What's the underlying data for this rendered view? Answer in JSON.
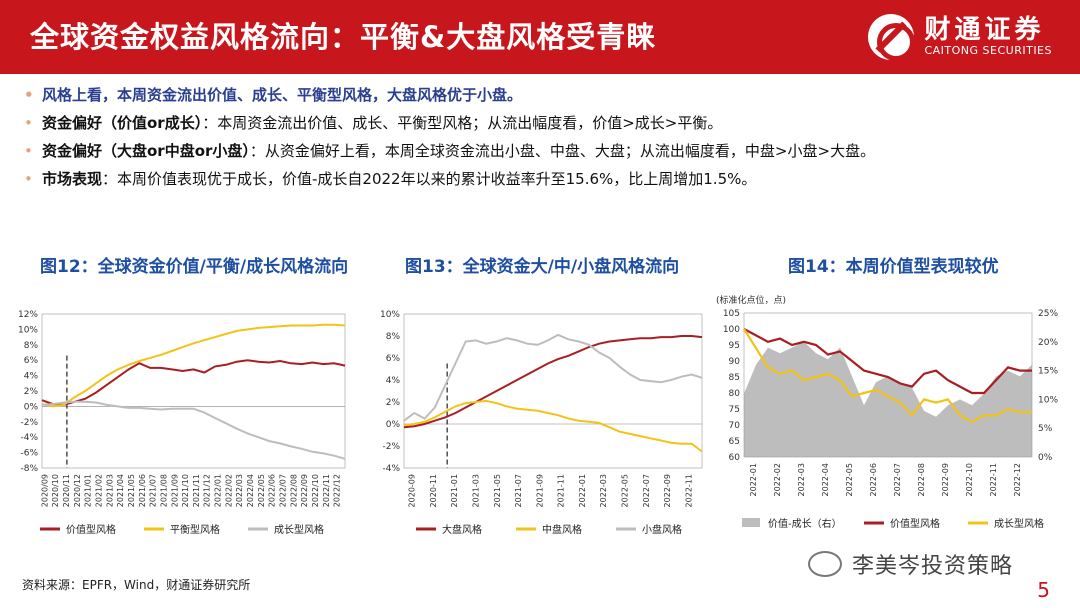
{
  "header": {
    "title": "全球资金权益风格流向：平衡&大盘风格受青睐",
    "logo_cn": "财通证券",
    "logo_en": "CAITONG SECURITIES"
  },
  "bullets": [
    {
      "bold": "风格上看，本周资金流出价值、成长、平衡型风格，大盘风格优于小盘。",
      "text": ""
    },
    {
      "bold": "资金偏好（价值or成长）",
      "text": "：本周资金流出价值、成长、平衡型风格；从流出幅度看，价值>成长>平衡。"
    },
    {
      "bold": "资金偏好（大盘or中盘or小盘）",
      "text": "：从资金偏好上看，本周全球资金流出小盘、中盘、大盘；从流出幅度看，中盘>小盘>大盘。"
    },
    {
      "bold": "市场表现",
      "text": "：本周价值表现优于成长，价值-成长自2022年以来的累计收益率升至15.6%，比上周增加1.5%。"
    }
  ],
  "colors": {
    "red": "#a81e23",
    "yellow": "#f2c318",
    "gray": "#bdbdbd",
    "brand": "#c8161d",
    "title_blue": "#1f4fa0"
  },
  "footer": {
    "source": "资料来源：EPFR，Wind，财通证券研究所",
    "watermark": "李美岑投资策略",
    "page": "5"
  },
  "chart_data": [
    {
      "type": "line",
      "title": "图12：全球资金价值/平衡/成长风格流向",
      "x_ticks": [
        "2020/09",
        "2020/10",
        "2020/11",
        "2020/12",
        "2021/01",
        "2021/02",
        "2021/03",
        "2021/04",
        "2021/05",
        "2021/06",
        "2021/07",
        "2021/08",
        "2021/09",
        "2021/10",
        "2021/11",
        "2021/12",
        "2022/01",
        "2022/02",
        "2022/03",
        "2022/04",
        "2022/05",
        "2022/06",
        "2022/07",
        "2022/08",
        "2022/09",
        "2022/10",
        "2022/11",
        "2022/12"
      ],
      "y_ticks": [
        "12%",
        "10%",
        "8%",
        "6%",
        "4%",
        "2%",
        "0%",
        "-2%",
        "-4%",
        "-6%",
        "-8%"
      ],
      "ylim": [
        -8,
        12
      ],
      "marker_x": 2.3,
      "x_range": [
        0,
        28
      ],
      "series": [
        {
          "name": "价值型风格",
          "color": "#a81e23",
          "x": [
            0,
            1,
            2,
            3,
            4,
            5,
            6,
            7,
            8,
            9,
            10,
            11,
            12,
            13,
            14,
            15,
            16,
            17,
            18,
            19,
            20,
            21,
            22,
            23,
            24,
            25,
            26,
            27,
            28
          ],
          "values": [
            0.8,
            0.3,
            0.2,
            0.6,
            1.0,
            1.8,
            2.8,
            3.8,
            4.8,
            5.6,
            5.0,
            5.0,
            4.8,
            4.6,
            4.8,
            4.4,
            5.2,
            5.4,
            5.8,
            6.0,
            5.8,
            5.7,
            5.9,
            5.6,
            5.5,
            5.7,
            5.5,
            5.6,
            5.3
          ]
        },
        {
          "name": "平衡型风格",
          "color": "#f2c318",
          "x": [
            0,
            1,
            2,
            3,
            4,
            5,
            6,
            7,
            8,
            9,
            10,
            11,
            12,
            13,
            14,
            15,
            16,
            17,
            18,
            19,
            20,
            21,
            22,
            23,
            24,
            25,
            26,
            27,
            28
          ],
          "values": [
            0.3,
            0.0,
            0.2,
            1.2,
            2.0,
            3.0,
            4.0,
            4.8,
            5.4,
            5.9,
            6.3,
            6.7,
            7.2,
            7.7,
            8.2,
            8.6,
            9.0,
            9.4,
            9.8,
            10.0,
            10.2,
            10.3,
            10.4,
            10.5,
            10.5,
            10.5,
            10.6,
            10.6,
            10.5
          ]
        },
        {
          "name": "成长型风格",
          "color": "#bdbdbd",
          "x": [
            0,
            1,
            2,
            3,
            4,
            5,
            6,
            7,
            8,
            9,
            10,
            11,
            12,
            13,
            14,
            15,
            16,
            17,
            18,
            19,
            20,
            21,
            22,
            23,
            24,
            25,
            26,
            27,
            28
          ],
          "values": [
            0.2,
            0.3,
            0.5,
            0.6,
            0.6,
            0.5,
            0.2,
            0.0,
            -0.2,
            -0.2,
            -0.3,
            -0.4,
            -0.3,
            -0.3,
            -0.3,
            -0.8,
            -1.5,
            -2.2,
            -2.9,
            -3.5,
            -4.0,
            -4.5,
            -4.8,
            -5.2,
            -5.5,
            -5.9,
            -6.1,
            -6.4,
            -6.8
          ]
        }
      ]
    },
    {
      "type": "line",
      "title": "图13：全球资金大/中/小盘风格流向",
      "x_ticks": [
        "2020-09",
        "2020-11",
        "2021-01",
        "2021-03",
        "2021-05",
        "2021-07",
        "2021-09",
        "2021-11",
        "2022-01",
        "2022-03",
        "2022-05",
        "2022-07",
        "2022-09",
        "2022-11"
      ],
      "y_ticks": [
        "10%",
        "8%",
        "6%",
        "4%",
        "2%",
        "0%",
        "-2%",
        "-4%"
      ],
      "ylim": [
        -4,
        10
      ],
      "marker_x": 2.1,
      "x_range": [
        0,
        14.5
      ],
      "series": [
        {
          "name": "大盘风格",
          "color": "#a81e23",
          "x": [
            0,
            0.5,
            1,
            1.5,
            2,
            2.5,
            3,
            3.5,
            4,
            4.5,
            5,
            5.5,
            6,
            6.5,
            7,
            7.5,
            8,
            8.5,
            9,
            9.5,
            10,
            10.5,
            11,
            11.5,
            12,
            12.5,
            13,
            13.5,
            14,
            14.5
          ],
          "values": [
            -0.3,
            -0.2,
            0,
            0.3,
            0.6,
            1.0,
            1.5,
            2.0,
            2.5,
            3.0,
            3.5,
            4.0,
            4.5,
            5.0,
            5.5,
            5.9,
            6.2,
            6.6,
            7.0,
            7.3,
            7.5,
            7.6,
            7.7,
            7.8,
            7.8,
            7.9,
            7.9,
            8.0,
            8.0,
            7.9
          ]
        },
        {
          "name": "中盘风格",
          "color": "#f2c318",
          "x": [
            0,
            0.5,
            1,
            1.5,
            2,
            2.5,
            3,
            3.5,
            4,
            4.5,
            5,
            5.5,
            6,
            6.5,
            7,
            7.5,
            8,
            8.5,
            9,
            9.5,
            10,
            10.5,
            11,
            11.5,
            12,
            12.5,
            13,
            13.5,
            14,
            14.5
          ],
          "values": [
            -0.1,
            0.0,
            0.2,
            0.6,
            1.1,
            1.6,
            1.9,
            2.0,
            2.1,
            1.9,
            1.6,
            1.4,
            1.3,
            1.2,
            1.0,
            0.8,
            0.5,
            0.3,
            0.2,
            0.1,
            -0.3,
            -0.7,
            -0.9,
            -1.1,
            -1.3,
            -1.5,
            -1.7,
            -1.8,
            -1.8,
            -2.5
          ]
        },
        {
          "name": "小盘风格",
          "color": "#bdbdbd",
          "x": [
            0,
            0.5,
            1,
            1.5,
            2,
            2.5,
            3,
            3.5,
            4,
            4.5,
            5,
            5.5,
            6,
            6.5,
            7,
            7.5,
            8,
            8.5,
            9,
            9.5,
            10,
            10.5,
            11,
            11.5,
            12,
            12.5,
            13,
            13.5,
            14,
            14.5
          ],
          "values": [
            0.3,
            1.0,
            0.5,
            1.5,
            3.5,
            5.5,
            7.5,
            7.6,
            7.3,
            7.5,
            7.8,
            7.6,
            7.3,
            7.2,
            7.6,
            8.1,
            7.7,
            7.5,
            7.2,
            6.5,
            6.0,
            5.2,
            4.5,
            4.0,
            3.9,
            3.8,
            4.0,
            4.3,
            4.5,
            4.2
          ]
        }
      ]
    },
    {
      "type": "line",
      "title": "图14：本周价值型表现较优",
      "unit_label": "(标准化点位，点)",
      "x_ticks": [
        "2022-01",
        "2022-02",
        "2022-03",
        "2022-04",
        "2022-05",
        "2022-06",
        "2022-07",
        "2022-08",
        "2022-09",
        "2022-10",
        "2022-11",
        "2022-12"
      ],
      "y_ticks_left": [
        "105",
        "100",
        "95",
        "90",
        "85",
        "80",
        "75",
        "70",
        "65",
        "60"
      ],
      "y_ticks_right": [
        "25%",
        "20%",
        "15%",
        "10%",
        "5%",
        "0%"
      ],
      "ylim_left": [
        60,
        105
      ],
      "ylim_right": [
        0,
        25
      ],
      "x_range": [
        0,
        12
      ],
      "series": [
        {
          "name": "价值-成长（右）",
          "type": "area",
          "axis": "right",
          "color": "#bdbdbd",
          "x": [
            0,
            0.5,
            1,
            1.5,
            2,
            2.5,
            3,
            3.5,
            4,
            4.5,
            5,
            5.5,
            6,
            6.5,
            7,
            7.5,
            8,
            8.5,
            9,
            9.5,
            10,
            10.5,
            11,
            11.5,
            12
          ],
          "values": [
            11,
            16,
            19,
            18,
            19,
            20,
            18,
            17,
            19,
            14,
            9,
            13,
            14,
            13,
            12,
            8,
            7,
            9,
            10,
            9,
            11,
            14,
            15,
            14,
            16
          ]
        },
        {
          "name": "价值型风格",
          "type": "line",
          "axis": "left",
          "color": "#a81e23",
          "x": [
            0,
            0.5,
            1,
            1.5,
            2,
            2.5,
            3,
            3.5,
            4,
            4.5,
            5,
            5.5,
            6,
            6.5,
            7,
            7.5,
            8,
            8.5,
            9,
            9.5,
            10,
            10.5,
            11,
            11.5,
            12
          ],
          "values": [
            100,
            98,
            96,
            97,
            95,
            96,
            95,
            92,
            93,
            90,
            87,
            86,
            85,
            83,
            82,
            86,
            87,
            84,
            82,
            80,
            80,
            84,
            88,
            87,
            87
          ]
        },
        {
          "name": "成长型风格",
          "type": "line",
          "axis": "left",
          "color": "#f2c318",
          "x": [
            0,
            0.5,
            1,
            1.5,
            2,
            2.5,
            3,
            3.5,
            4,
            4.5,
            5,
            5.5,
            6,
            6.5,
            7,
            7.5,
            8,
            8.5,
            9,
            9.5,
            10,
            10.5,
            11,
            11.5,
            12
          ],
          "values": [
            100,
            94,
            88,
            86,
            87,
            84,
            85,
            86,
            84,
            79,
            80,
            81,
            79,
            77,
            73,
            78,
            77,
            78,
            73,
            71,
            73,
            73,
            75,
            74,
            74
          ]
        }
      ]
    }
  ]
}
